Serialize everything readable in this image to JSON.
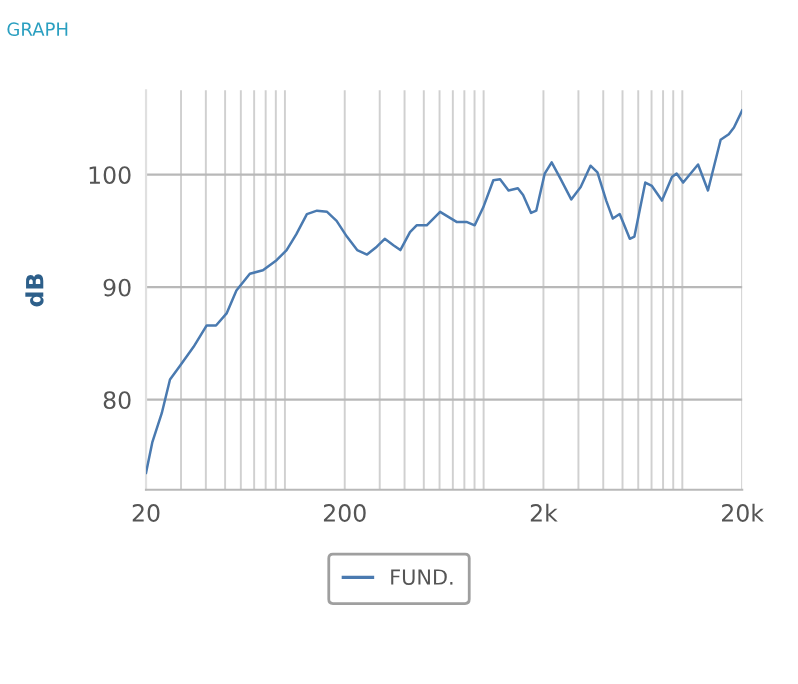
{
  "chart_data": {
    "type": "line",
    "title": "GRAPH",
    "ylabel": "dB",
    "log": "x",
    "grid": true,
    "legend": "bottom",
    "marker": "none",
    "line_style": "solid",
    "xlim": [
      20,
      20000
    ],
    "ylim": [
      72,
      107.5
    ],
    "yticks": [
      80,
      90,
      100
    ],
    "xticks": [
      20,
      {
        "value": 30,
        "label": null
      },
      {
        "value": 40,
        "label": null
      },
      {
        "value": 50,
        "label": null
      },
      {
        "value": 60,
        "label": null
      },
      {
        "value": 70,
        "label": null
      },
      {
        "value": 80,
        "label": null
      },
      {
        "value": 90,
        "label": null
      },
      {
        "value": 100,
        "label": null
      },
      200,
      {
        "value": 300,
        "label": null
      },
      {
        "value": 400,
        "label": null
      },
      {
        "value": 500,
        "label": null
      },
      {
        "value": 600,
        "label": null
      },
      {
        "value": 700,
        "label": null
      },
      {
        "value": 800,
        "label": null
      },
      {
        "value": 900,
        "label": null
      },
      {
        "value": 1000,
        "label": null
      },
      {
        "value": 2000,
        "label": "2k"
      },
      {
        "value": 3000,
        "label": null
      },
      {
        "value": 4000,
        "label": null
      },
      {
        "value": 5000,
        "label": null
      },
      {
        "value": 6000,
        "label": null
      },
      {
        "value": 7000,
        "label": null
      },
      {
        "value": 8000,
        "label": null
      },
      {
        "value": 9000,
        "label": null
      },
      {
        "value": 10000,
        "label": null
      },
      {
        "value": 20000,
        "label": "20k"
      }
    ],
    "series": [
      {
        "name": "FUND.",
        "color": "#4a7ab0",
        "x": [
          20,
          21.5,
          24,
          26.4,
          29.6,
          34.7,
          40.4,
          45,
          51,
          57,
          66.6,
          77.5,
          90.8,
          102,
          114,
          129,
          145,
          163,
          182,
          205,
          231,
          259,
          290,
          318,
          353,
          381,
          426,
          460,
          517,
          604,
          731,
          820,
          902,
          996,
          1119,
          1210,
          1335,
          1487,
          1580,
          1733,
          1840,
          2030,
          2200,
          2410,
          2760,
          3080,
          3450,
          3740,
          4140,
          4470,
          4840,
          5440,
          5740,
          6510,
          7030,
          7900,
          8870,
          9360,
          10100,
          12000,
          13460,
          15590,
          17130,
          18190,
          20000
        ],
        "values": [
          73.5,
          76.2,
          78.8,
          81.8,
          83.0,
          84.7,
          86.6,
          86.6,
          87.7,
          89.7,
          91.2,
          91.5,
          92.4,
          93.3,
          94.7,
          96.5,
          96.8,
          96.7,
          95.9,
          94.5,
          93.3,
          92.9,
          93.6,
          94.3,
          93.7,
          93.3,
          94.9,
          95.5,
          95.5,
          96.7,
          95.8,
          95.8,
          95.5,
          97.1,
          99.5,
          99.6,
          98.6,
          98.8,
          98.2,
          96.6,
          96.8,
          100.1,
          101.1,
          99.8,
          97.8,
          98.9,
          100.8,
          100.2,
          97.7,
          96.1,
          96.5,
          94.3,
          94.5,
          99.3,
          99.0,
          97.7,
          99.8,
          100.1,
          99.3,
          100.9,
          98.6,
          103.1,
          103.6,
          104.2,
          105.7
        ]
      }
    ]
  }
}
